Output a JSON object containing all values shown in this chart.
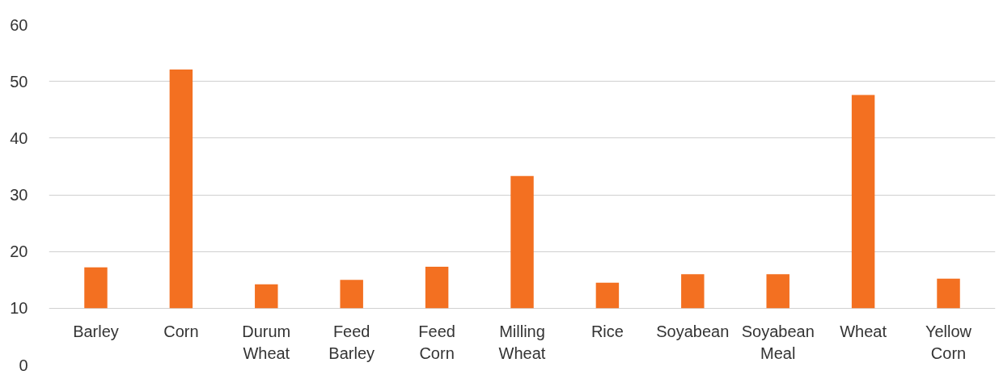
{
  "chart_data": {
    "type": "bar",
    "categories": [
      "Barley",
      "Corn",
      "Durum Wheat",
      "Feed Barley",
      "Feed Corn",
      "Milling Wheat",
      "Rice",
      "Soyabean",
      "Soyabean Meal",
      "Wheat",
      "Yellow Corn"
    ],
    "values": [
      7.2,
      42.1,
      4.2,
      5.0,
      7.3,
      23.3,
      4.5,
      6.0,
      6.0,
      37.6,
      5.2
    ],
    "base": [
      10,
      10,
      10,
      10,
      10,
      10,
      10,
      10,
      10,
      10,
      10
    ],
    "color": "#f37021",
    "ylim": [
      0,
      60
    ],
    "yticks": [
      0,
      10,
      20,
      30,
      40,
      50,
      60
    ],
    "grid": "y"
  }
}
